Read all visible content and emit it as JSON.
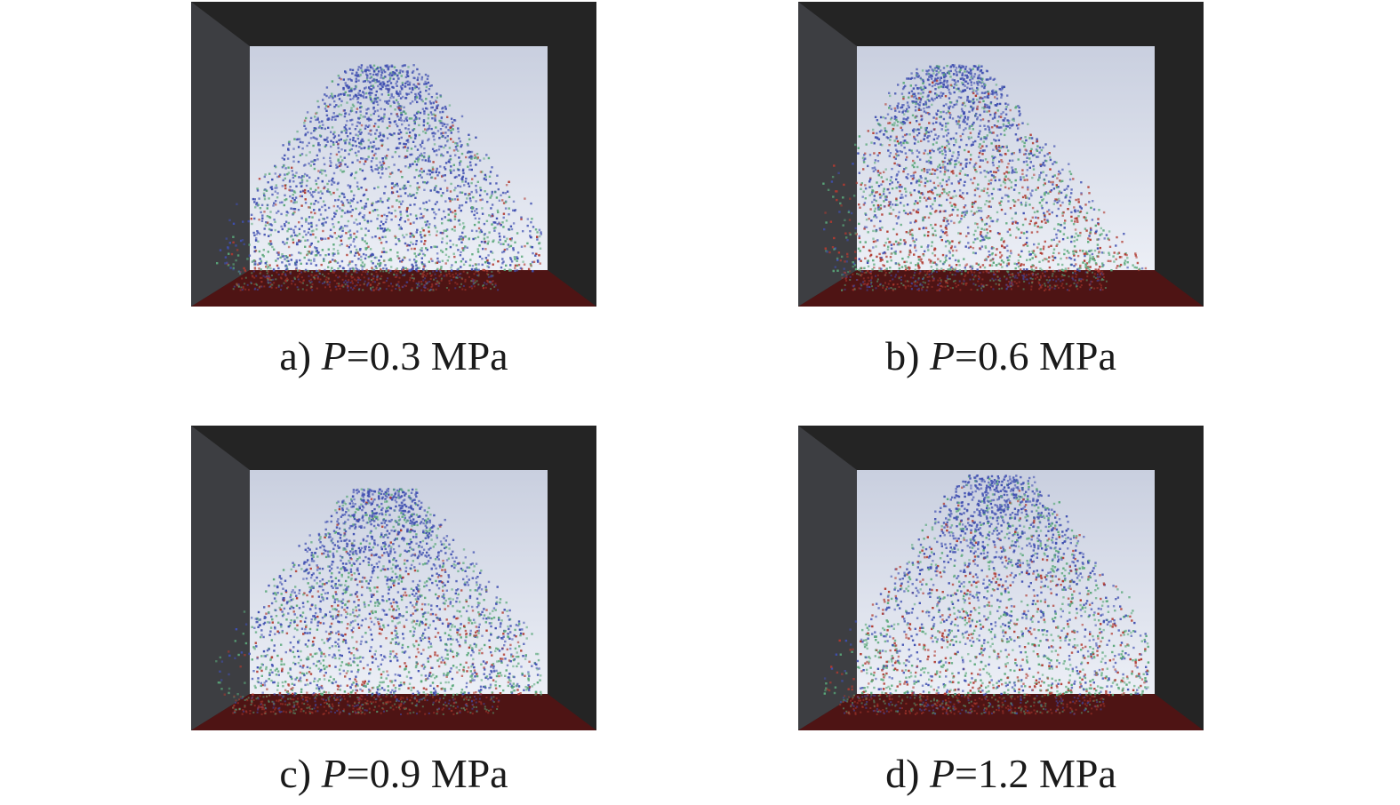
{
  "panels": [
    {
      "id": "a",
      "letter": "a)",
      "var": "P",
      "value_text": "=0.3 MPa",
      "pressure_mpa": 0.3,
      "spread": {
        "blue": 0.62,
        "green": 0.28,
        "red": 0.1
      }
    },
    {
      "id": "b",
      "letter": "b)",
      "var": "P",
      "value_text": "=0.6 MPa",
      "pressure_mpa": 0.6,
      "spread": {
        "blue": 0.4,
        "green": 0.32,
        "red": 0.28
      }
    },
    {
      "id": "c",
      "letter": "c)",
      "var": "P",
      "value_text": "=0.9 MPa",
      "pressure_mpa": 0.9,
      "spread": {
        "blue": 0.48,
        "green": 0.36,
        "red": 0.16
      }
    },
    {
      "id": "d",
      "letter": "d)",
      "var": "P",
      "value_text": "=1.2 MPa",
      "pressure_mpa": 1.2,
      "spread": {
        "blue": 0.42,
        "green": 0.38,
        "red": 0.2
      }
    }
  ],
  "colors": {
    "frame": "#242424",
    "side_wall": "#3d3e42",
    "floor": "#4e1414",
    "back_wall_top": "#c9cfdf",
    "back_wall_bottom": "#eceff6",
    "particle_blue": "#3f4fb0",
    "particle_green": "#5aa87a",
    "particle_red": "#b03a30",
    "caption": "#1a1a1a"
  }
}
